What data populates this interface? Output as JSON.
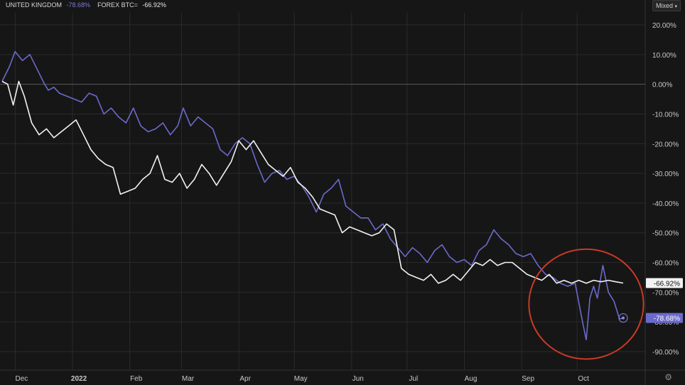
{
  "legend": {
    "series1_name": "UNITED KINGDOM",
    "series1_value": "-78.68%",
    "series2_name": "FOREX BTC=",
    "series2_value": "-66.92%"
  },
  "mode_label": "Mixed",
  "colors": {
    "background": "#161616",
    "series_blue": "#6a6acd",
    "series_white": "#f2f2f2",
    "highlight_circle": "#c93a24",
    "grid": "#2a2a2a",
    "zero_line": "#5a5a5a"
  },
  "chart_data": {
    "type": "line",
    "x_ticks": [
      "Dec",
      "2022",
      "Feb",
      "Mar",
      "Apr",
      "May",
      "Jun",
      "Jul",
      "Aug",
      "Sep",
      "Oct"
    ],
    "y_ticks": [
      20,
      10,
      0,
      -10,
      -20,
      -30,
      -40,
      -50,
      -60,
      -70,
      -80,
      -90
    ],
    "y_tick_labels": [
      "20.00%",
      "10.00%",
      "0.00%",
      "-10.00%",
      "-20.00%",
      "-30.00%",
      "-40.00%",
      "-50.00%",
      "-60.00%",
      "-70.00%",
      "-80.00%",
      "-90.00%"
    ],
    "ylim": [
      -96,
      24
    ],
    "x_range": [
      "2021-11-22",
      "2022-11-08"
    ],
    "grid": true,
    "series": [
      {
        "name": "UNITED KINGDOM",
        "color": "blue",
        "end_label": "-78.68%",
        "points": [
          [
            "2021-11-22",
            1
          ],
          [
            "2021-11-26",
            6
          ],
          [
            "2021-11-29",
            11
          ],
          [
            "2021-12-03",
            8
          ],
          [
            "2021-12-07",
            10
          ],
          [
            "2021-12-11",
            5
          ],
          [
            "2021-12-15",
            0
          ],
          [
            "2021-12-17",
            -2
          ],
          [
            "2021-12-20",
            -1
          ],
          [
            "2021-12-23",
            -3
          ],
          [
            "2021-12-27",
            -4
          ],
          [
            "2021-12-31",
            -5
          ],
          [
            "2022-01-04",
            -6
          ],
          [
            "2022-01-08",
            -3
          ],
          [
            "2022-01-12",
            -4
          ],
          [
            "2022-01-16",
            -10
          ],
          [
            "2022-01-20",
            -8
          ],
          [
            "2022-01-24",
            -11
          ],
          [
            "2022-01-28",
            -13
          ],
          [
            "2022-02-01",
            -8
          ],
          [
            "2022-02-05",
            -14
          ],
          [
            "2022-02-09",
            -16
          ],
          [
            "2022-02-13",
            -15
          ],
          [
            "2022-02-17",
            -13
          ],
          [
            "2022-02-21",
            -17
          ],
          [
            "2022-02-25",
            -14
          ],
          [
            "2022-02-28",
            -8
          ],
          [
            "2022-03-04",
            -14
          ],
          [
            "2022-03-08",
            -11
          ],
          [
            "2022-03-12",
            -13
          ],
          [
            "2022-03-16",
            -15
          ],
          [
            "2022-03-20",
            -22
          ],
          [
            "2022-03-24",
            -24
          ],
          [
            "2022-03-28",
            -20
          ],
          [
            "2022-04-01",
            -18
          ],
          [
            "2022-04-05",
            -20
          ],
          [
            "2022-04-09",
            -27
          ],
          [
            "2022-04-13",
            -33
          ],
          [
            "2022-04-17",
            -30
          ],
          [
            "2022-04-21",
            -29
          ],
          [
            "2022-04-25",
            -32
          ],
          [
            "2022-04-29",
            -31
          ],
          [
            "2022-05-03",
            -34
          ],
          [
            "2022-05-07",
            -38
          ],
          [
            "2022-05-11",
            -43
          ],
          [
            "2022-05-15",
            -37
          ],
          [
            "2022-05-19",
            -35
          ],
          [
            "2022-05-23",
            -32
          ],
          [
            "2022-05-27",
            -41
          ],
          [
            "2022-05-31",
            -43
          ],
          [
            "2022-06-04",
            -45
          ],
          [
            "2022-06-08",
            -45
          ],
          [
            "2022-06-12",
            -49
          ],
          [
            "2022-06-16",
            -47
          ],
          [
            "2022-06-20",
            -52
          ],
          [
            "2022-06-24",
            -55
          ],
          [
            "2022-06-28",
            -58
          ],
          [
            "2022-07-02",
            -55
          ],
          [
            "2022-07-06",
            -57
          ],
          [
            "2022-07-10",
            -60
          ],
          [
            "2022-07-14",
            -56
          ],
          [
            "2022-07-18",
            -54
          ],
          [
            "2022-07-22",
            -58
          ],
          [
            "2022-07-26",
            -60
          ],
          [
            "2022-07-30",
            -59
          ],
          [
            "2022-08-03",
            -61
          ],
          [
            "2022-08-07",
            -56
          ],
          [
            "2022-08-11",
            -54
          ],
          [
            "2022-08-15",
            -49
          ],
          [
            "2022-08-19",
            -52
          ],
          [
            "2022-08-23",
            -54
          ],
          [
            "2022-08-27",
            -57
          ],
          [
            "2022-08-31",
            -58
          ],
          [
            "2022-09-04",
            -57
          ],
          [
            "2022-09-08",
            -61
          ],
          [
            "2022-09-12",
            -64
          ],
          [
            "2022-09-16",
            -65
          ],
          [
            "2022-09-20",
            -67
          ],
          [
            "2022-09-24",
            -68
          ],
          [
            "2022-09-28",
            -67
          ],
          [
            "2022-10-02",
            -80
          ],
          [
            "2022-10-04",
            -86
          ],
          [
            "2022-10-06",
            -72
          ],
          [
            "2022-10-08",
            -68
          ],
          [
            "2022-10-10",
            -72
          ],
          [
            "2022-10-13",
            -61
          ],
          [
            "2022-10-16",
            -70
          ],
          [
            "2022-10-19",
            -73
          ],
          [
            "2022-10-22",
            -79
          ],
          [
            "2022-10-24",
            -78.68
          ]
        ]
      },
      {
        "name": "FOREX BTC=",
        "color": "white",
        "end_label": "-66.92%",
        "points": [
          [
            "2021-11-22",
            1
          ],
          [
            "2021-11-25",
            0
          ],
          [
            "2021-11-28",
            -7
          ],
          [
            "2021-12-01",
            1
          ],
          [
            "2021-12-04",
            -4
          ],
          [
            "2021-12-08",
            -13
          ],
          [
            "2021-12-12",
            -17
          ],
          [
            "2021-12-16",
            -15
          ],
          [
            "2021-12-20",
            -18
          ],
          [
            "2021-12-24",
            -16
          ],
          [
            "2021-12-28",
            -14
          ],
          [
            "2022-01-01",
            -12
          ],
          [
            "2022-01-05",
            -17
          ],
          [
            "2022-01-09",
            -22
          ],
          [
            "2022-01-13",
            -25
          ],
          [
            "2022-01-17",
            -27
          ],
          [
            "2022-01-21",
            -28
          ],
          [
            "2022-01-25",
            -37
          ],
          [
            "2022-01-29",
            -36
          ],
          [
            "2022-02-02",
            -35
          ],
          [
            "2022-02-06",
            -32
          ],
          [
            "2022-02-10",
            -30
          ],
          [
            "2022-02-14",
            -24
          ],
          [
            "2022-02-18",
            -32
          ],
          [
            "2022-02-22",
            -33
          ],
          [
            "2022-02-26",
            -30
          ],
          [
            "2022-03-02",
            -35
          ],
          [
            "2022-03-06",
            -32
          ],
          [
            "2022-03-10",
            -27
          ],
          [
            "2022-03-14",
            -30
          ],
          [
            "2022-03-18",
            -34
          ],
          [
            "2022-03-22",
            -30
          ],
          [
            "2022-03-26",
            -26
          ],
          [
            "2022-03-30",
            -19
          ],
          [
            "2022-04-03",
            -22
          ],
          [
            "2022-04-07",
            -19
          ],
          [
            "2022-04-11",
            -23
          ],
          [
            "2022-04-15",
            -27
          ],
          [
            "2022-04-19",
            -29
          ],
          [
            "2022-04-23",
            -31
          ],
          [
            "2022-04-27",
            -28
          ],
          [
            "2022-05-01",
            -33
          ],
          [
            "2022-05-05",
            -35
          ],
          [
            "2022-05-09",
            -38
          ],
          [
            "2022-05-13",
            -42
          ],
          [
            "2022-05-17",
            -43
          ],
          [
            "2022-05-21",
            -44
          ],
          [
            "2022-05-25",
            -50
          ],
          [
            "2022-05-29",
            -48
          ],
          [
            "2022-06-02",
            -49
          ],
          [
            "2022-06-06",
            -50
          ],
          [
            "2022-06-10",
            -51
          ],
          [
            "2022-06-14",
            -50
          ],
          [
            "2022-06-18",
            -47
          ],
          [
            "2022-06-22",
            -49
          ],
          [
            "2022-06-26",
            -62
          ],
          [
            "2022-06-30",
            -64
          ],
          [
            "2022-07-04",
            -65
          ],
          [
            "2022-07-08",
            -66
          ],
          [
            "2022-07-12",
            -64
          ],
          [
            "2022-07-16",
            -67
          ],
          [
            "2022-07-20",
            -66
          ],
          [
            "2022-07-24",
            -64
          ],
          [
            "2022-07-28",
            -66
          ],
          [
            "2022-08-01",
            -63
          ],
          [
            "2022-08-05",
            -60
          ],
          [
            "2022-08-09",
            -61
          ],
          [
            "2022-08-13",
            -59
          ],
          [
            "2022-08-17",
            -61
          ],
          [
            "2022-08-21",
            -60
          ],
          [
            "2022-08-25",
            -60
          ],
          [
            "2022-08-29",
            -62
          ],
          [
            "2022-09-02",
            -64
          ],
          [
            "2022-09-06",
            -65
          ],
          [
            "2022-09-10",
            -66
          ],
          [
            "2022-09-14",
            -64
          ],
          [
            "2022-09-18",
            -67
          ],
          [
            "2022-09-22",
            -66
          ],
          [
            "2022-09-26",
            -67
          ],
          [
            "2022-09-30",
            -66
          ],
          [
            "2022-10-04",
            -67
          ],
          [
            "2022-10-08",
            -66
          ],
          [
            "2022-10-12",
            -66.5
          ],
          [
            "2022-10-16",
            -66
          ],
          [
            "2022-10-20",
            -66.5
          ],
          [
            "2022-10-24",
            -66.92
          ]
        ]
      }
    ],
    "annotations": [
      {
        "type": "ellipse",
        "color": "red",
        "center": [
          "2022-10-04",
          -74
        ],
        "rx_days": 31,
        "ry": 18.5
      }
    ]
  }
}
